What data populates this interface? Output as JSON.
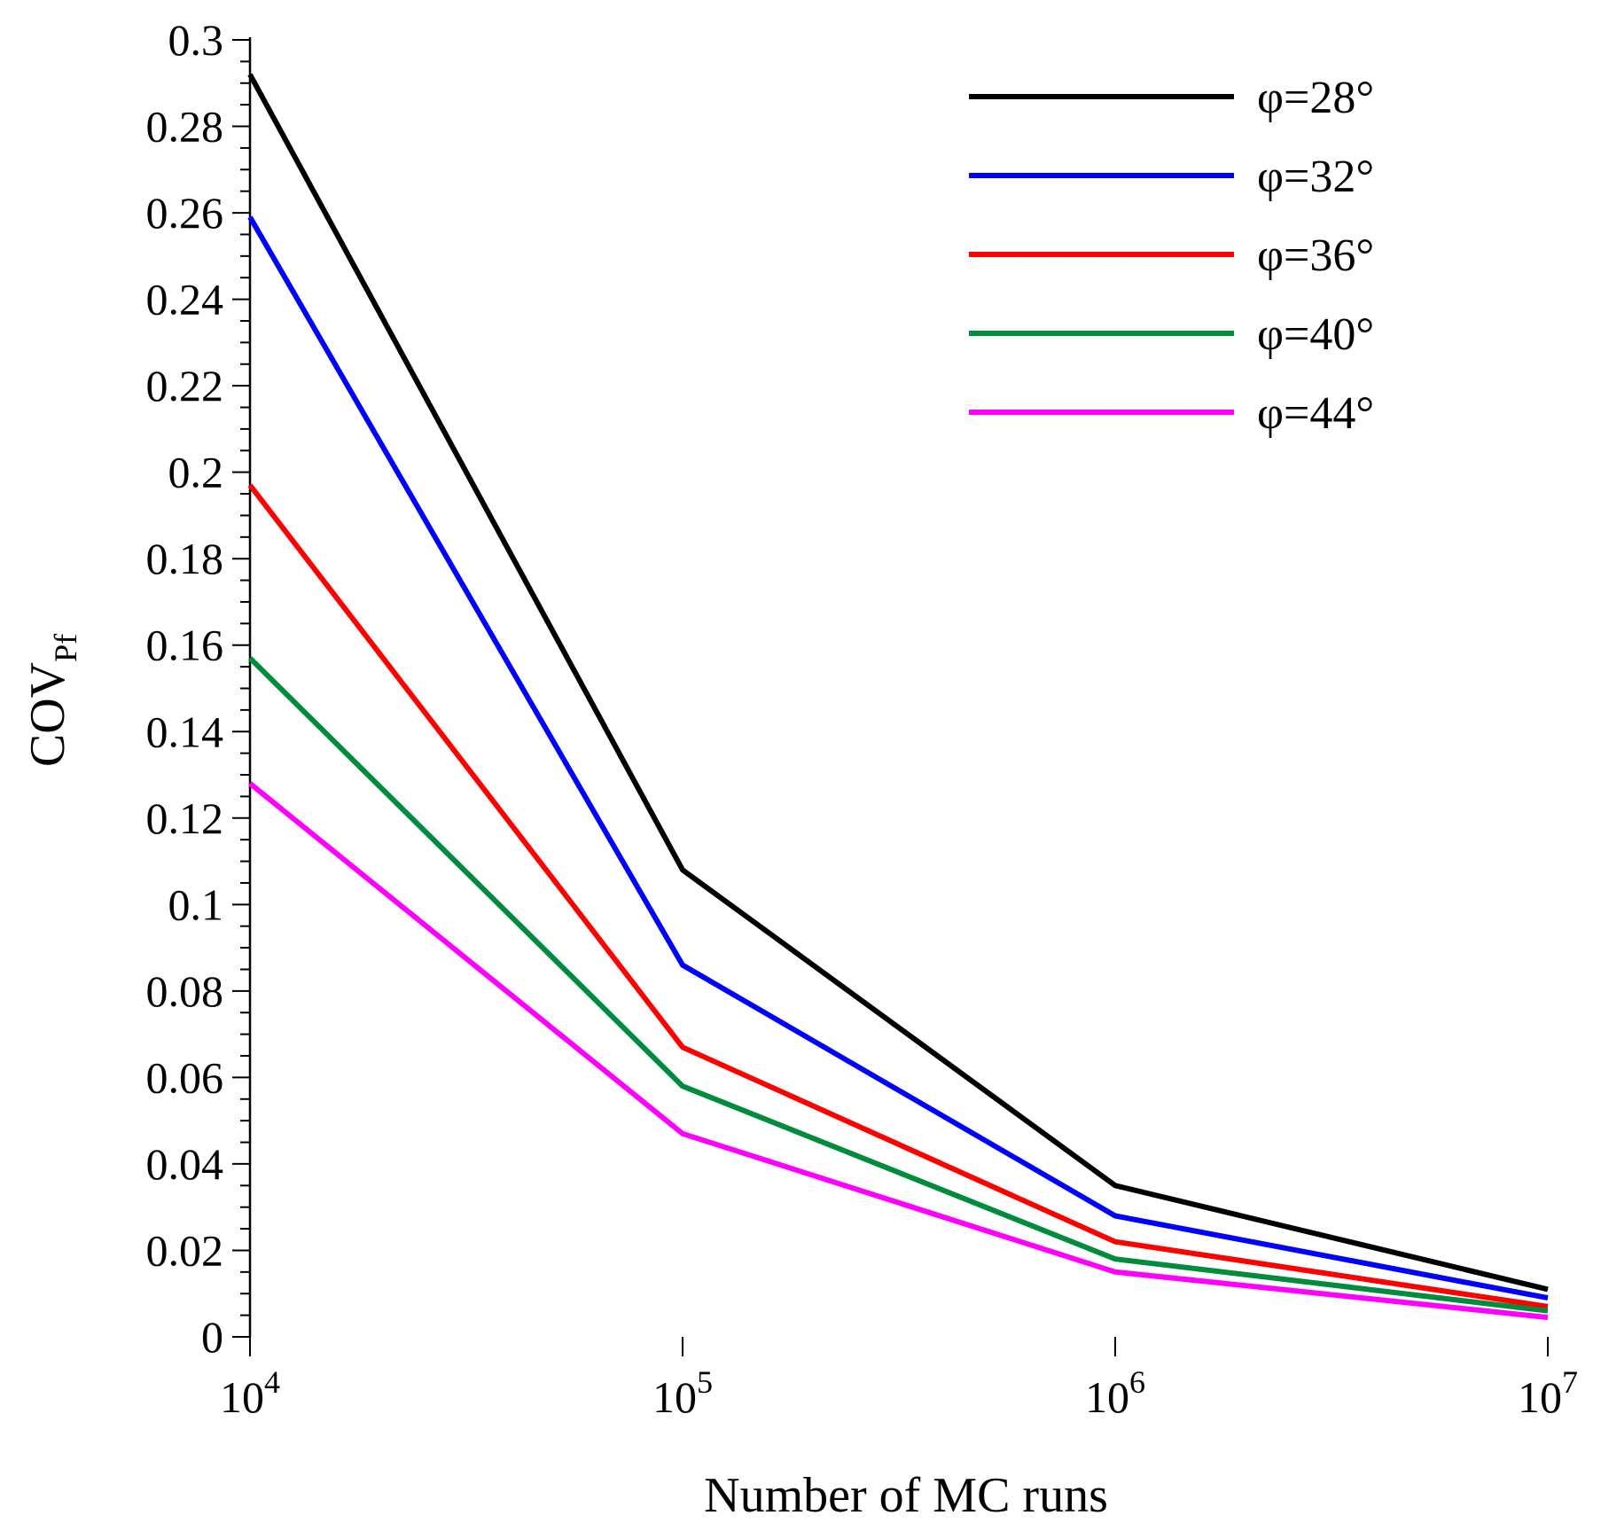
{
  "chart_data": {
    "type": "line",
    "title": "",
    "xlabel": "Number of MC runs",
    "ylabel": {
      "main": "COV",
      "subscript": "Pf"
    },
    "x_scale": "log",
    "xlim": [
      10000,
      10000000
    ],
    "ylim": [
      0,
      0.3
    ],
    "grid": false,
    "legend_position": "top-right",
    "x_ticks": [
      {
        "base": "10",
        "exp": "4",
        "value": 10000
      },
      {
        "base": "10",
        "exp": "5",
        "value": 100000
      },
      {
        "base": "10",
        "exp": "6",
        "value": 1000000
      },
      {
        "base": "10",
        "exp": "7",
        "value": 10000000
      }
    ],
    "y_ticks": [
      {
        "label": "0",
        "value": 0
      },
      {
        "label": "0.02",
        "value": 0.02
      },
      {
        "label": "0.04",
        "value": 0.04
      },
      {
        "label": "0.06",
        "value": 0.06
      },
      {
        "label": "0.08",
        "value": 0.08
      },
      {
        "label": "0.1",
        "value": 0.1
      },
      {
        "label": "0.12",
        "value": 0.12
      },
      {
        "label": "0.14",
        "value": 0.14
      },
      {
        "label": "0.16",
        "value": 0.16
      },
      {
        "label": "0.18",
        "value": 0.18
      },
      {
        "label": "0.2",
        "value": 0.2
      },
      {
        "label": "0.22",
        "value": 0.22
      },
      {
        "label": "0.24",
        "value": 0.24
      },
      {
        "label": "0.26",
        "value": 0.26
      },
      {
        "label": "0.28",
        "value": 0.28
      },
      {
        "label": "0.3",
        "value": 0.3
      }
    ],
    "x": [
      10000,
      100000,
      1000000,
      10000000
    ],
    "series": [
      {
        "name": "φ=28°",
        "color": "#000000",
        "values": [
          0.292,
          0.108,
          0.035,
          0.011
        ]
      },
      {
        "name": "φ=32°",
        "color": "#0000ff",
        "values": [
          0.259,
          0.086,
          0.028,
          0.009
        ]
      },
      {
        "name": "φ=36°",
        "color": "#ff0000",
        "values": [
          0.197,
          0.067,
          0.022,
          0.007
        ]
      },
      {
        "name": "φ=40°",
        "color": "#008c3c",
        "values": [
          0.157,
          0.058,
          0.018,
          0.006
        ]
      },
      {
        "name": "φ=44°",
        "color": "#ff00ff",
        "values": [
          0.128,
          0.047,
          0.015,
          0.0045
        ]
      }
    ]
  }
}
